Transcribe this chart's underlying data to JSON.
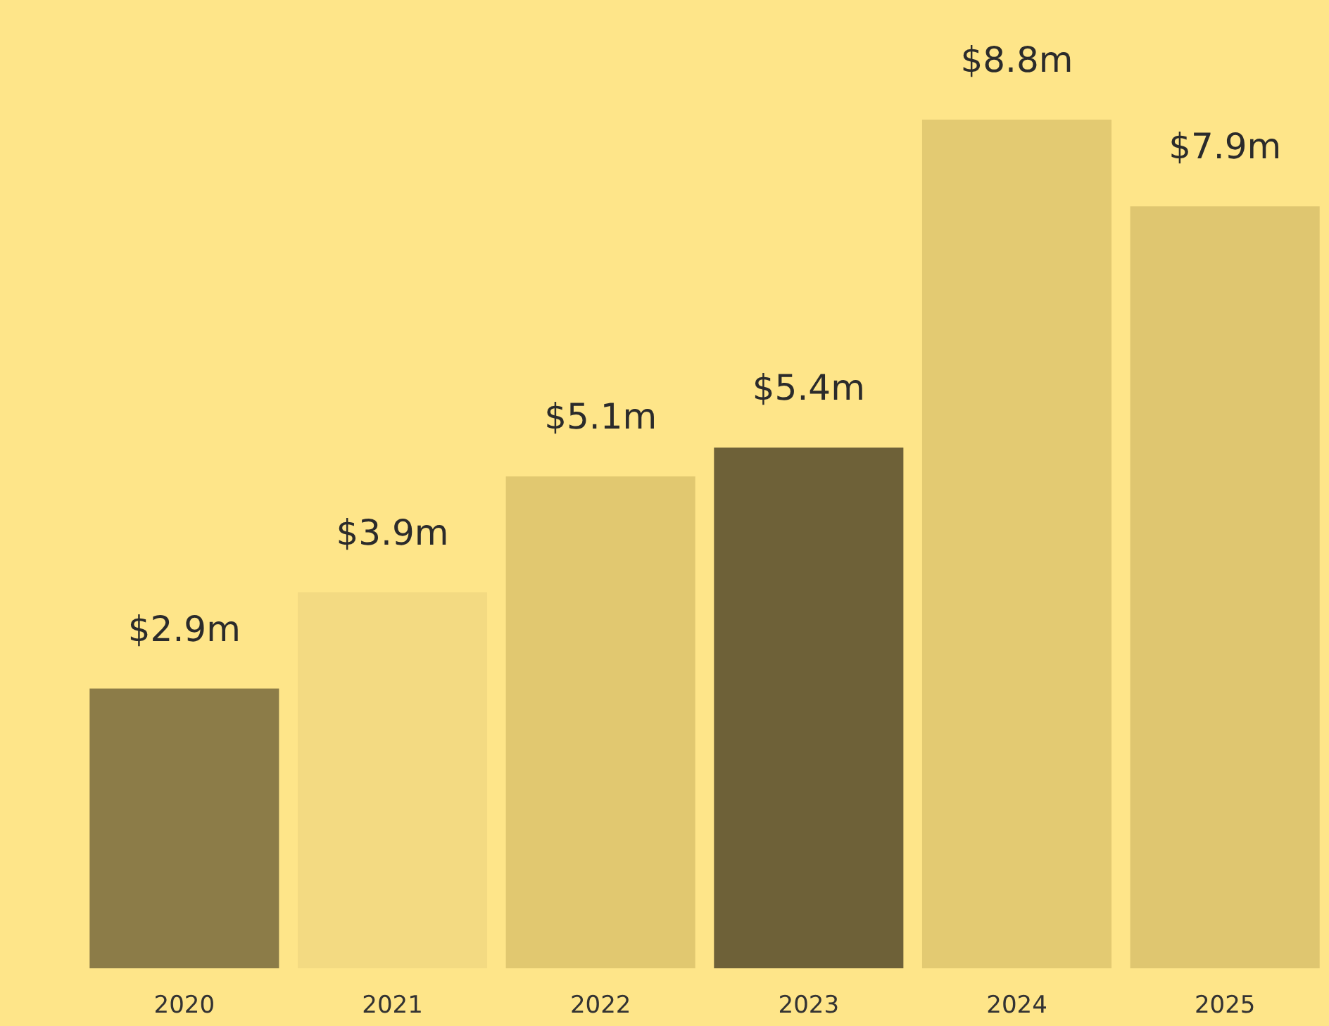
{
  "chart_data": {
    "type": "bar",
    "categories": [
      "2020",
      "2021",
      "2022",
      "2023",
      "2024",
      "2025"
    ],
    "values": [
      2.9,
      3.9,
      5.1,
      5.4,
      8.8,
      7.9
    ],
    "value_labels": [
      "$2.9m",
      "$3.9m",
      "$5.1m",
      "$5.4m",
      "$8.8m",
      "$7.9m"
    ],
    "colors": [
      "#8c7c48",
      "#f3da82",
      "#e1c870",
      "#6e6138",
      "#e3ca72",
      "#dfc670"
    ]
  }
}
